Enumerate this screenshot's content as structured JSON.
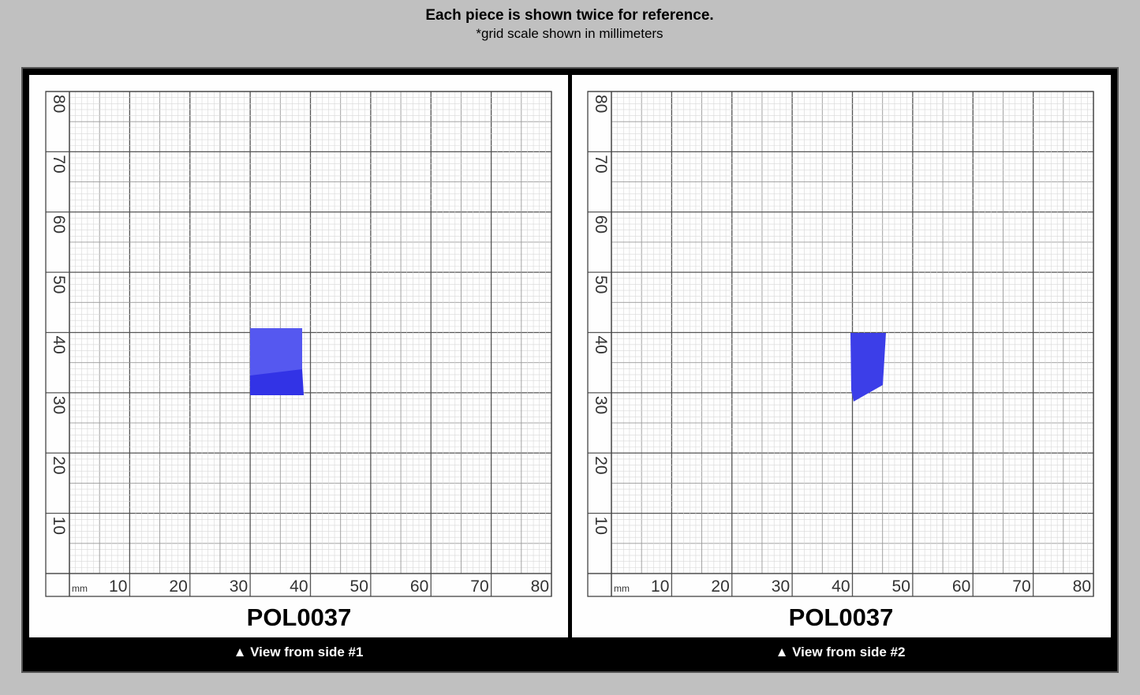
{
  "header": {
    "title": "Each piece is shown twice for reference.",
    "subtitle": "*grid scale shown in millimeters"
  },
  "panels": [
    {
      "unit": "mm",
      "x_labels": [
        10,
        20,
        30,
        40,
        50,
        60,
        70,
        80
      ],
      "y_labels": [
        10,
        20,
        30,
        40,
        50,
        60,
        70,
        80
      ],
      "code": "POL0037",
      "caption": "▲ View from side #1"
    },
    {
      "unit": "mm",
      "x_labels": [
        10,
        20,
        30,
        40,
        50,
        60,
        70,
        80
      ],
      "y_labels": [
        10,
        20,
        30,
        40,
        50,
        60,
        70,
        80
      ],
      "code": "POL0037",
      "caption": "▲ View from side #2"
    }
  ]
}
